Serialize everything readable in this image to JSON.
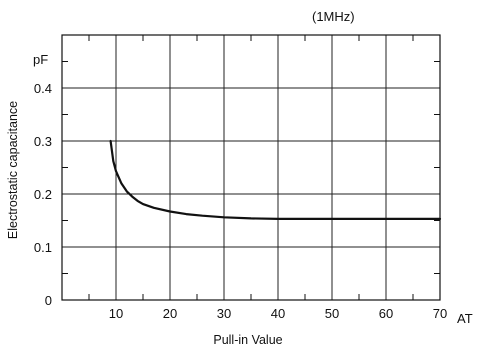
{
  "chart_data": {
    "type": "line",
    "annotation": "(1MHz)",
    "xlabel": "Pull-in Value",
    "ylabel": "Electrostatic capacitance",
    "x_unit": "AT",
    "y_unit": "pF",
    "xlim": [
      0,
      70
    ],
    "ylim": [
      0,
      0.5
    ],
    "x_grid": [
      10,
      20,
      30,
      40,
      50,
      60
    ],
    "y_grid": [
      0.1,
      0.2,
      0.3,
      0.4
    ],
    "x_ticks": [
      10,
      20,
      30,
      40,
      50,
      60,
      70
    ],
    "y_ticks": [
      0,
      0.1,
      0.2,
      0.3,
      0.4
    ],
    "x_minor_ticks": [
      5,
      15,
      25,
      35,
      45,
      55,
      65
    ],
    "y_minor_ticks": [
      0.05,
      0.15,
      0.25,
      0.35,
      0.45
    ],
    "x_tick_labels": [
      "10",
      "20",
      "30",
      "40",
      "50",
      "60",
      "70"
    ],
    "y_tick_labels": [
      "0",
      "0.1",
      "0.2",
      "0.3",
      "0.4"
    ],
    "grid": true,
    "series": [
      {
        "x": [
          9,
          9.5,
          10,
          11,
          12,
          13,
          14,
          15,
          17,
          20,
          23,
          26,
          30,
          35,
          40,
          50,
          60,
          70
        ],
        "y": [
          0.3,
          0.262,
          0.243,
          0.22,
          0.205,
          0.195,
          0.187,
          0.181,
          0.174,
          0.167,
          0.162,
          0.159,
          0.156,
          0.154,
          0.153,
          0.153,
          0.153,
          0.153
        ]
      }
    ]
  }
}
